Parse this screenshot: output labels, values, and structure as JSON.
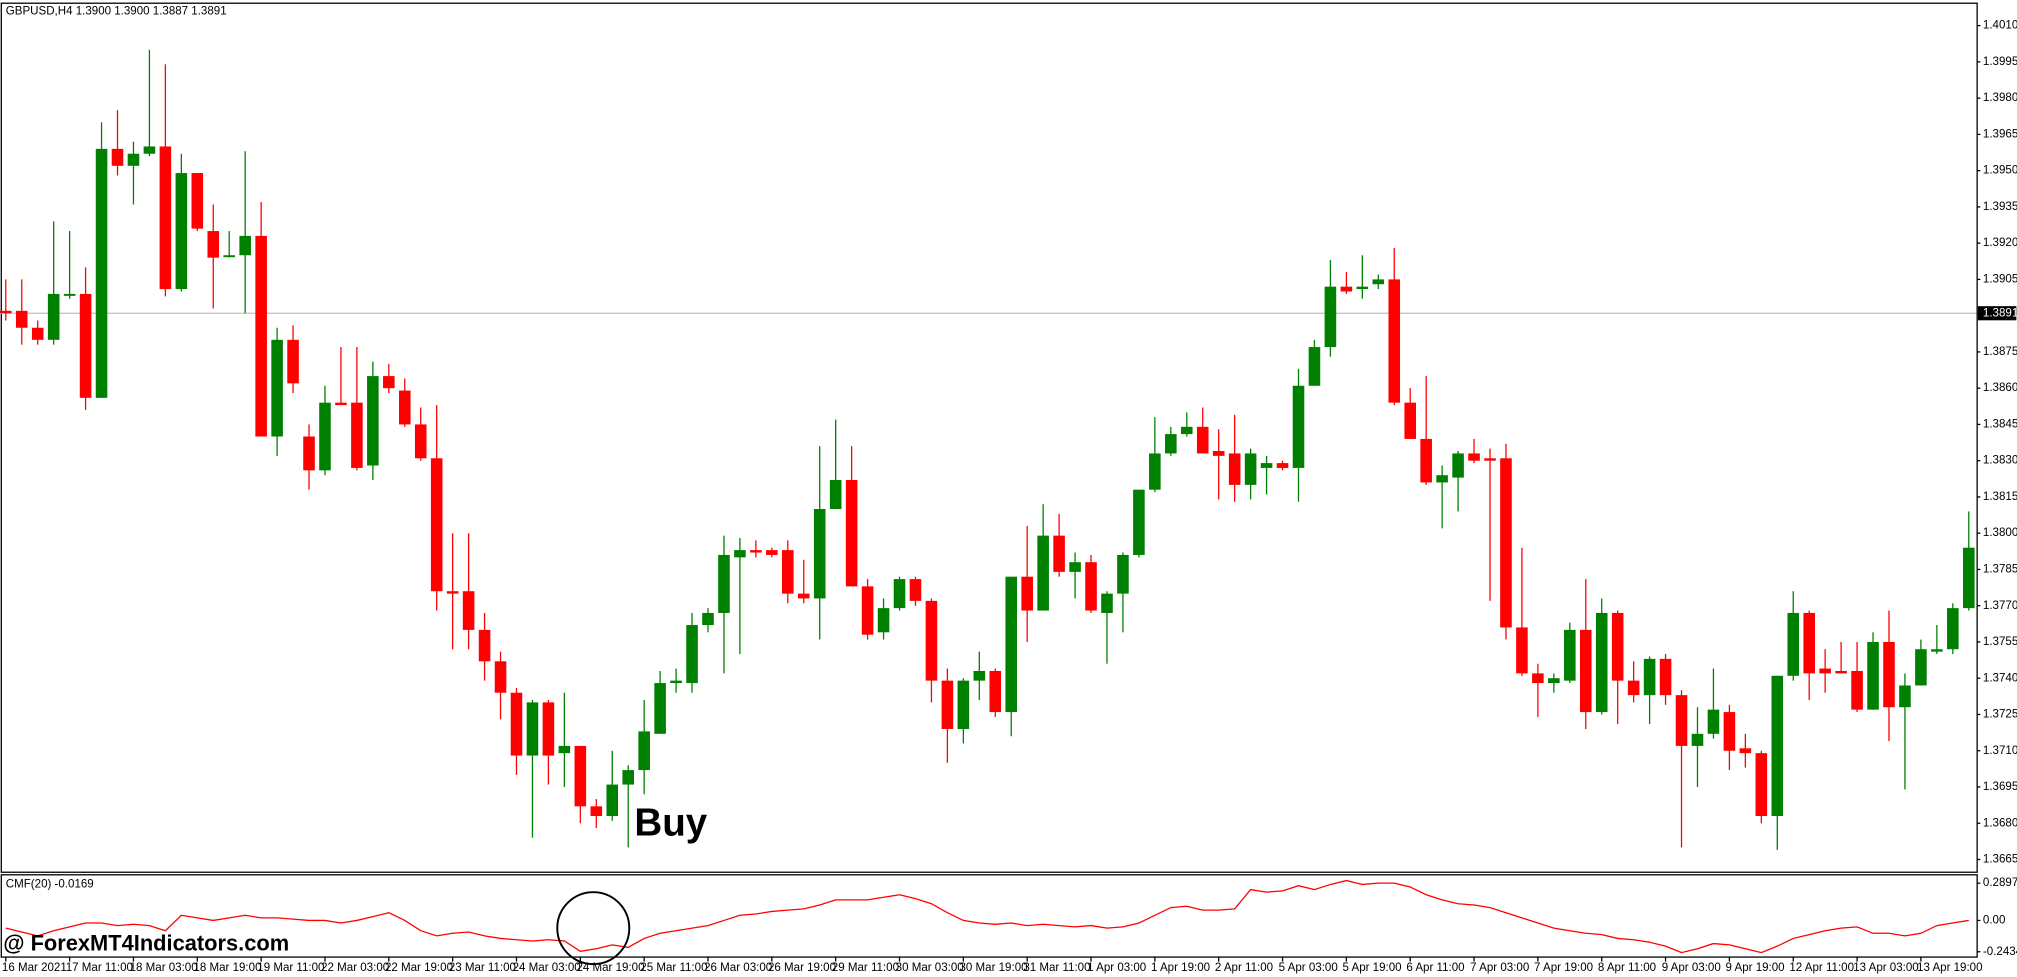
{
  "chart_data": [
    {
      "type": "candlestick",
      "title": "GBPUSD,H4  1.3900 1.3900 1.3887 1.3891",
      "categories": [
        "16 Mar 2021",
        null,
        null,
        null,
        "17 Mar 11:00",
        null,
        null,
        null,
        "18 Mar 03:00",
        null,
        null,
        null,
        "18 Mar 19:00",
        null,
        null,
        null,
        "19 Mar 11:00",
        null,
        null,
        null,
        "22 Mar 03:00",
        null,
        null,
        null,
        "22 Mar 19:00",
        null,
        null,
        null,
        "23 Mar 11:00",
        null,
        null,
        null,
        "24 Mar 03:00",
        null,
        null,
        null,
        "24 Mar 19:00",
        null,
        null,
        null,
        "25 Mar 11:00",
        null,
        null,
        null,
        "26 Mar 03:00",
        null,
        null,
        null,
        "26 Mar 19:00",
        null,
        null,
        null,
        "29 Mar 11:00",
        null,
        null,
        null,
        "30 Mar 03:00",
        null,
        null,
        null,
        "30 Mar 19:00",
        null,
        null,
        null,
        "31 Mar 11:00",
        null,
        null,
        null,
        "1 Apr 03:00",
        null,
        null,
        null,
        "1 Apr 19:00",
        null,
        null,
        null,
        "2 Apr 11:00",
        null,
        null,
        null,
        "5 Apr 03:00",
        null,
        null,
        null,
        "5 Apr 19:00",
        null,
        null,
        null,
        "6 Apr 11:00",
        null,
        null,
        null,
        "7 Apr 03:00",
        null,
        null,
        null,
        "7 Apr 19:00",
        null,
        null,
        null,
        "8 Apr 11:00",
        null,
        null,
        null,
        "9 Apr 03:00",
        null,
        null,
        null,
        "9 Apr 19:00",
        null,
        null,
        null,
        "12 Apr 11:00",
        null,
        null,
        null,
        "13 Apr 03:00",
        null,
        null,
        null,
        "13 Apr 19:00",
        null,
        null,
        null
      ],
      "open": [
        1.3892,
        1.3892,
        1.3885,
        1.388,
        1.3899,
        1.3899,
        1.3856,
        1.3959,
        1.3952,
        1.3957,
        1.396,
        1.3901,
        1.3949,
        1.3925,
        1.3915,
        1.3915,
        1.3923,
        1.384,
        1.388,
        1.384,
        1.3826,
        1.3854,
        1.3854,
        1.3828,
        1.3865,
        1.3859,
        1.3845,
        1.3831,
        1.3776,
        1.3776,
        1.376,
        1.3747,
        1.3734,
        1.3708,
        1.373,
        1.3709,
        1.3712,
        1.3687,
        1.3683,
        1.3696,
        1.3702,
        1.3717,
        1.3738,
        1.3738,
        1.3762,
        1.3767,
        1.379,
        1.3793,
        1.3793,
        1.3793,
        1.3775,
        1.3773,
        1.381,
        1.3822,
        1.3778,
        1.3759,
        1.3769,
        1.3781,
        1.3772,
        1.3739,
        1.3719,
        1.3739,
        1.3743,
        1.3726,
        1.3782,
        1.3768,
        1.3799,
        1.3784,
        1.3788,
        1.3767,
        1.3775,
        1.3791,
        1.3818,
        1.3833,
        1.3841,
        1.3844,
        1.3834,
        1.3833,
        1.382,
        1.3827,
        1.3829,
        1.3827,
        1.3861,
        1.3877,
        1.3902,
        1.3901,
        1.3903,
        1.3905,
        1.3854,
        1.3839,
        1.3821,
        1.3823,
        1.3833,
        1.3831,
        1.3831,
        1.3761,
        1.3742,
        1.3738,
        1.3739,
        1.376,
        1.3726,
        1.3767,
        1.3739,
        1.3733,
        1.3748,
        1.3733,
        1.3712,
        1.3717,
        1.3726,
        1.3711,
        1.3709,
        1.3683,
        1.3741,
        1.3767,
        1.3744,
        1.3743,
        1.3743,
        1.3727,
        1.3755,
        1.3728,
        1.3737,
        1.3751,
        1.3752,
        1.3769
      ],
      "high": [
        1.3905,
        1.3905,
        1.3888,
        1.3929,
        1.3925,
        1.391,
        1.397,
        1.3975,
        1.3962,
        1.4,
        1.3994,
        1.3957,
        1.3949,
        1.3936,
        1.3925,
        1.3958,
        1.3937,
        1.3885,
        1.3886,
        1.3845,
        1.3861,
        1.3877,
        1.3877,
        1.3871,
        1.387,
        1.3864,
        1.3852,
        1.3853,
        1.38,
        1.38,
        1.3767,
        1.3751,
        1.3736,
        1.3731,
        1.3731,
        1.3734,
        1.3712,
        1.369,
        1.371,
        1.3704,
        1.3731,
        1.3743,
        1.3744,
        1.3767,
        1.3769,
        1.3799,
        1.3798,
        1.3797,
        1.3794,
        1.3797,
        1.3789,
        1.3836,
        1.3847,
        1.3836,
        1.3781,
        1.3773,
        1.3782,
        1.3782,
        1.3773,
        1.3744,
        1.374,
        1.3751,
        1.3744,
        1.3782,
        1.3803,
        1.3812,
        1.3808,
        1.3792,
        1.3791,
        1.3776,
        1.3792,
        1.3818,
        1.3848,
        1.3844,
        1.385,
        1.3852,
        1.3843,
        1.3849,
        1.3835,
        1.3832,
        1.383,
        1.3868,
        1.388,
        1.3913,
        1.3908,
        1.3915,
        1.3907,
        1.3918,
        1.386,
        1.3865,
        1.3828,
        1.3834,
        1.3839,
        1.3835,
        1.3837,
        1.3794,
        1.3746,
        1.3742,
        1.3763,
        1.3781,
        1.3773,
        1.3768,
        1.3747,
        1.3749,
        1.375,
        1.3735,
        1.3728,
        1.3744,
        1.3729,
        1.3717,
        1.371,
        1.3741,
        1.3776,
        1.3768,
        1.3752,
        1.3755,
        1.3755,
        1.3759,
        1.3768,
        1.3742,
        1.3756,
        1.3762,
        1.3771,
        1.3809
      ],
      "low": [
        1.3888,
        1.3878,
        1.3878,
        1.3878,
        1.3897,
        1.3851,
        1.3856,
        1.3948,
        1.3936,
        1.3956,
        1.3898,
        1.39,
        1.3925,
        1.3893,
        1.3914,
        1.3891,
        1.384,
        1.3832,
        1.3858,
        1.3818,
        1.3824,
        1.3853,
        1.3826,
        1.3822,
        1.3858,
        1.3844,
        1.383,
        1.3768,
        1.3752,
        1.3752,
        1.3739,
        1.3723,
        1.37,
        1.3674,
        1.3696,
        1.3695,
        1.368,
        1.3678,
        1.3681,
        1.367,
        1.3692,
        1.3717,
        1.3734,
        1.3734,
        1.3759,
        1.3742,
        1.375,
        1.379,
        1.379,
        1.3771,
        1.3771,
        1.3756,
        1.381,
        1.3778,
        1.3756,
        1.3756,
        1.3768,
        1.377,
        1.373,
        1.3705,
        1.3713,
        1.3731,
        1.3724,
        1.3716,
        1.3755,
        1.3768,
        1.3782,
        1.3773,
        1.3767,
        1.3746,
        1.3759,
        1.379,
        1.3817,
        1.3832,
        1.384,
        1.3833,
        1.3814,
        1.3813,
        1.3814,
        1.3816,
        1.3826,
        1.3813,
        1.3861,
        1.3873,
        1.3899,
        1.3897,
        1.3901,
        1.3853,
        1.3839,
        1.382,
        1.3802,
        1.3809,
        1.3829,
        1.3772,
        1.3756,
        1.3741,
        1.3724,
        1.3734,
        1.3738,
        1.3719,
        1.3725,
        1.3721,
        1.373,
        1.3721,
        1.3729,
        1.367,
        1.3695,
        1.3715,
        1.3702,
        1.3703,
        1.368,
        1.3669,
        1.3739,
        1.3731,
        1.3734,
        1.3742,
        1.3726,
        1.3727,
        1.3714,
        1.3694,
        1.3737,
        1.375,
        1.375,
        1.3768
      ],
      "close": [
        1.3891,
        1.3885,
        1.388,
        1.3899,
        1.3899,
        1.3856,
        1.3959,
        1.3952,
        1.3957,
        1.396,
        1.3901,
        1.3949,
        1.3926,
        1.3914,
        1.3915,
        1.3923,
        1.384,
        1.388,
        1.3862,
        1.3826,
        1.3854,
        1.3853,
        1.3827,
        1.3865,
        1.386,
        1.3845,
        1.3831,
        1.3776,
        1.3775,
        1.376,
        1.3747,
        1.3734,
        1.3708,
        1.373,
        1.3708,
        1.3712,
        1.3687,
        1.3683,
        1.3696,
        1.3702,
        1.3718,
        1.3738,
        1.3739,
        1.3762,
        1.3767,
        1.3791,
        1.3793,
        1.3792,
        1.3791,
        1.3775,
        1.3773,
        1.381,
        1.3822,
        1.3778,
        1.3758,
        1.3769,
        1.3781,
        1.3772,
        1.3739,
        1.3719,
        1.3739,
        1.3743,
        1.3726,
        1.3782,
        1.3768,
        1.3799,
        1.3784,
        1.3788,
        1.3768,
        1.3775,
        1.3791,
        1.3818,
        1.3833,
        1.3841,
        1.3844,
        1.3833,
        1.3832,
        1.382,
        1.3833,
        1.3829,
        1.3827,
        1.3861,
        1.3877,
        1.3902,
        1.39,
        1.3902,
        1.3905,
        1.3854,
        1.3839,
        1.3821,
        1.3824,
        1.3833,
        1.383,
        1.383,
        1.3761,
        1.3742,
        1.3738,
        1.374,
        1.376,
        1.3726,
        1.3767,
        1.3739,
        1.3733,
        1.3748,
        1.3733,
        1.3712,
        1.3717,
        1.3727,
        1.371,
        1.3709,
        1.3683,
        1.3741,
        1.3767,
        1.3742,
        1.3742,
        1.3742,
        1.3727,
        1.3755,
        1.3728,
        1.3737,
        1.3752,
        1.3752,
        1.3769,
        1.3794
      ],
      "up_color": "#008000",
      "down_color": "#ff0000",
      "ylim": [
        1.366,
        1.4019
      ],
      "yticks": [
        {
          "value": 1.401,
          "label": "1.4010"
        },
        1.3995,
        {
          "value": 1.398,
          "label": "1.3980"
        },
        1.3965,
        {
          "value": 1.395,
          "label": "1.3950"
        },
        1.3935,
        {
          "value": 1.392,
          "label": "1.3920"
        },
        1.3905,
        1.3875,
        {
          "value": 1.386,
          "label": "1.3860"
        },
        1.3845,
        {
          "value": 1.383,
          "label": "1.3830"
        },
        1.3815,
        {
          "value": 1.38,
          "label": "1.3800"
        },
        1.3785,
        {
          "value": 1.377,
          "label": "1.3770"
        },
        1.3755,
        {
          "value": 1.374,
          "label": "1.3740"
        },
        1.3725,
        {
          "value": 1.371,
          "label": "1.3710"
        },
        1.3695,
        {
          "value": 1.368,
          "label": "1.3680"
        },
        1.3665
      ],
      "price_line": 1.3891,
      "annotations": [
        "Buy"
      ]
    },
    {
      "type": "line",
      "title": "CMF(20) -0.0169",
      "series": [
        {
          "color": "#ff0000",
          "values": [
            -0.06,
            -0.09,
            -0.12,
            -0.08,
            -0.05,
            -0.02,
            -0.02,
            -0.04,
            -0.03,
            -0.04,
            -0.08,
            0.04,
            0.02,
            0.0,
            0.02,
            0.04,
            0.02,
            0.02,
            0.01,
            0.0,
            0.0,
            -0.02,
            0.0,
            0.03,
            0.06,
            0.0,
            -0.08,
            -0.12,
            -0.1,
            -0.09,
            -0.12,
            -0.14,
            -0.15,
            -0.16,
            -0.15,
            -0.16,
            -0.24,
            -0.22,
            -0.19,
            -0.21,
            -0.14,
            -0.1,
            -0.08,
            -0.06,
            -0.04,
            0.0,
            0.04,
            0.05,
            0.07,
            0.08,
            0.09,
            0.12,
            0.16,
            0.16,
            0.16,
            0.18,
            0.2,
            0.17,
            0.13,
            0.06,
            0.0,
            -0.02,
            -0.03,
            -0.02,
            -0.04,
            -0.03,
            -0.04,
            -0.05,
            -0.04,
            -0.06,
            -0.05,
            -0.02,
            0.04,
            0.1,
            0.11,
            0.08,
            0.08,
            0.09,
            0.24,
            0.22,
            0.23,
            0.27,
            0.24,
            0.28,
            0.31,
            0.28,
            0.29,
            0.29,
            0.26,
            0.2,
            0.16,
            0.13,
            0.12,
            0.1,
            0.06,
            0.02,
            -0.02,
            -0.06,
            -0.08,
            -0.1,
            -0.11,
            -0.14,
            -0.15,
            -0.17,
            -0.2,
            -0.25,
            -0.22,
            -0.18,
            -0.19,
            -0.22,
            -0.25,
            -0.2,
            -0.14,
            -0.11,
            -0.08,
            -0.06,
            -0.05,
            -0.1,
            -0.1,
            -0.12,
            -0.1,
            -0.04,
            -0.02,
            0.0
          ]
        }
      ],
      "ylim": [
        -0.28,
        0.35
      ],
      "yticks": [
        0.2897,
        {
          "value": 0,
          "label": "0.00"
        },
        -0.2434
      ]
    }
  ],
  "watermark": "@ ForexMT4Indicators.com"
}
